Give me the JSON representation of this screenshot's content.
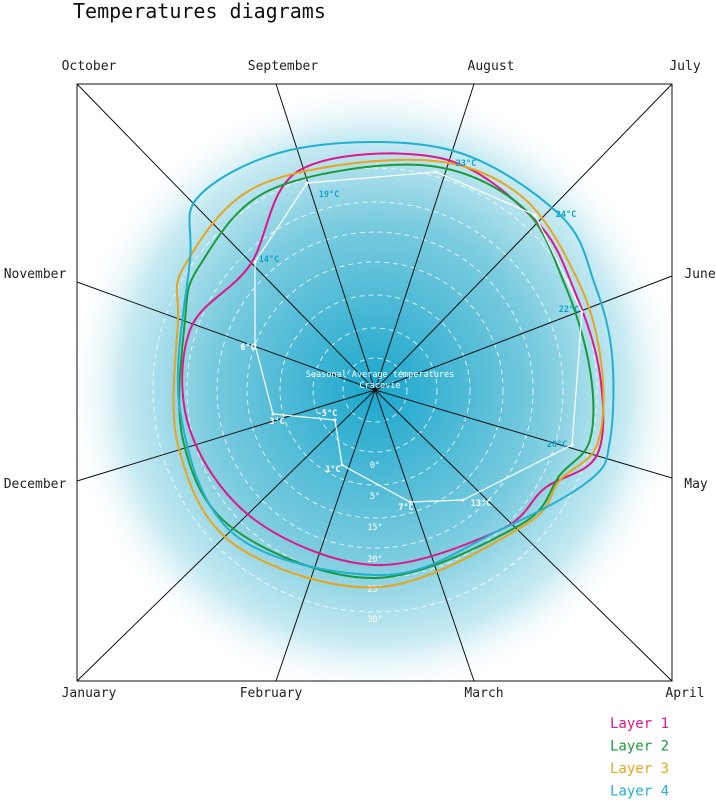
{
  "chart_data": {
    "type": "radar",
    "title": "Temperatures diagrams",
    "center_label_line1": "Seasonal Average temperatures",
    "center_label_line2": "Cracovie",
    "months": [
      "April",
      "May",
      "June",
      "July",
      "August",
      "September",
      "October",
      "November",
      "December",
      "January",
      "February",
      "March"
    ],
    "ring_labels": [
      "0°",
      "5°",
      "15°",
      "20°",
      "25°",
      "30°"
    ],
    "temperature_path": [
      {
        "label": "13°C",
        "color": "#ffffff"
      },
      {
        "label": "20°C",
        "color": "#0ea5c7"
      },
      {
        "label": "22°C",
        "color": "#0ea5c7"
      },
      {
        "label": "24°C",
        "color": "#0ea5c7"
      },
      {
        "label": "23°C",
        "color": "#0ea5c7"
      },
      {
        "label": "19°C",
        "color": "#0ea5c7"
      },
      {
        "label": "14°C",
        "color": "#0ea5c7"
      },
      {
        "label": "6°C",
        "color": "#ffffff"
      },
      {
        "label": "3°C",
        "color": "#ffffff"
      },
      {
        "label": "-5°C",
        "color": "#ffffff"
      },
      {
        "label": "1°C",
        "color": "#ffffff"
      },
      {
        "label": "7°C",
        "color": "#ffffff"
      }
    ],
    "series": [
      {
        "name": "Layer 1",
        "color": "#e0168a"
      },
      {
        "name": "Layer 2",
        "color": "#1a9a3a"
      },
      {
        "name": "Layer 3",
        "color": "#e8a51c"
      },
      {
        "name": "Layer 4",
        "color": "#22b0cf"
      }
    ],
    "background_color": "#1aa6cc",
    "grid_dashed": true
  }
}
